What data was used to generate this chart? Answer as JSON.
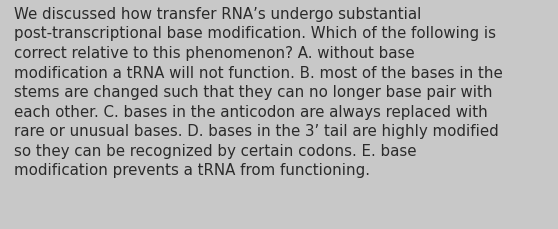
{
  "text": "We discussed how transfer RNA's undergo substantial post-transcriptional base modification. Which of the following is correct relative to this phenomenon? A. without base modification a tRNA will not function. B. most of the bases in the stems are changed such that they can no longer base pair with each other. C. bases in the anticodon are always replaced with rare or unusual bases. D. bases in the 3’ tail are highly modified so they can be recognized by certain codons. E. base modification prevents a tRNA from functioning.",
  "lines": [
    "We discussed how transfer RNA’s undergo substantial",
    "post-transcriptional base modification. Which of the following is",
    "correct relative to this phenomenon? A. without base",
    "modification a tRNA will not function. B. most of the bases in the",
    "stems are changed such that they can no longer base pair with",
    "each other. C. bases in the anticodon are always replaced with",
    "rare or unusual bases. D. bases in the 3’ tail are highly modified",
    "so they can be recognized by certain codons. E. base",
    "modification prevents a tRNA from functioning."
  ],
  "background_color": "#c8c8c8",
  "text_color": "#2b2b2b",
  "font_size": 10.8,
  "fig_width": 5.58,
  "fig_height": 2.3,
  "dpi": 100
}
